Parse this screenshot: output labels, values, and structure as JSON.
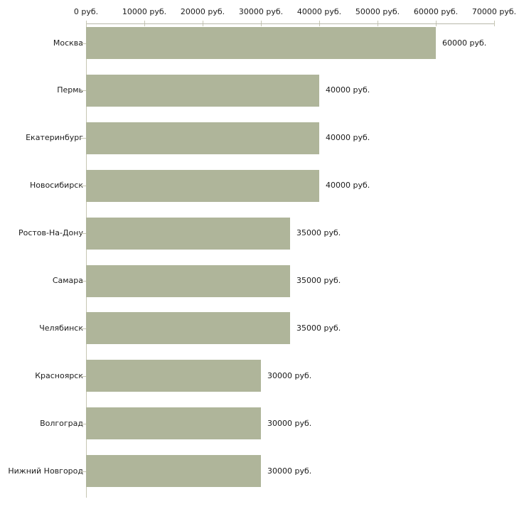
{
  "chart_data": {
    "type": "bar",
    "orientation": "horizontal",
    "title": "",
    "unit": "руб.",
    "categories": [
      "Москва",
      "Пермь",
      "Екатеринбург",
      "Новосибирск",
      "Ростов-На-Дону",
      "Самара",
      "Челябинск",
      "Красноярск",
      "Волгоград",
      "Нижний Новгород"
    ],
    "values": [
      60000,
      40000,
      40000,
      40000,
      35000,
      35000,
      35000,
      30000,
      30000,
      30000
    ],
    "value_labels": [
      "60000 руб.",
      "40000 руб.",
      "40000 руб.",
      "40000 руб.",
      "35000 руб.",
      "35000 руб.",
      "35000 руб.",
      "30000 руб.",
      "30000 руб.",
      "30000 руб."
    ],
    "x_axis": {
      "position": "top",
      "range": [
        0,
        70000
      ],
      "tick_step": 10000,
      "ticks": [
        0,
        10000,
        20000,
        30000,
        40000,
        50000,
        60000,
        70000
      ],
      "tick_labels": [
        "0 руб.",
        "10000 руб.",
        "20000 руб.",
        "30000 руб.",
        "40000 руб.",
        "50000 руб.",
        "60000 руб.",
        "70000 руб."
      ]
    },
    "grid": false,
    "legend": null,
    "colors": {
      "bar": "#afb59a",
      "axis_line": "#b8b8aa",
      "tick": "#c6c6b4",
      "text": "#1c1c1c",
      "background": "#ffffff"
    }
  }
}
